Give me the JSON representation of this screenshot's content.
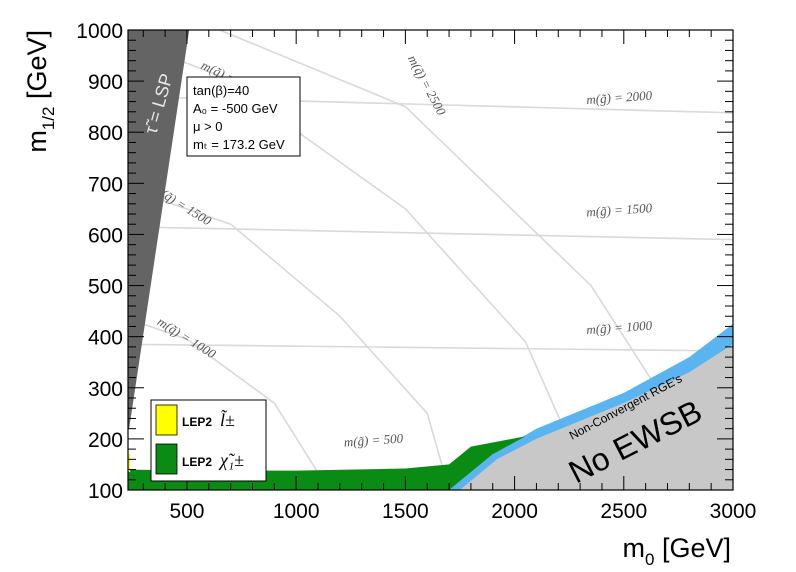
{
  "chart_data": {
    "type": "area",
    "xlabel_main": "m",
    "xlabel_sub": "0",
    "xlabel_unit": " [GeV]",
    "ylabel_main": "m",
    "ylabel_sub": "1/2",
    "ylabel_unit": " [GeV]",
    "xlim": [
      230,
      3000
    ],
    "ylim": [
      100,
      1000
    ],
    "xticks": [
      500,
      1000,
      1500,
      2000,
      2500,
      3000
    ],
    "xtick_labels": [
      "500",
      "1000",
      "1500",
      "2000",
      "2500",
      "3000"
    ],
    "yticks": [
      100,
      200,
      300,
      400,
      500,
      600,
      700,
      800,
      900,
      1000
    ],
    "ytick_labels": [
      "100",
      "200",
      "300",
      "400",
      "500",
      "600",
      "700",
      "800",
      "900",
      "1000"
    ],
    "parameters": [
      "tan(β)=40",
      "A₀ = -500 GeV",
      "μ > 0",
      "mₜ = 173.2 GeV"
    ],
    "regions": [
      {
        "name": "τ̃ = LSP",
        "color": "#646464",
        "polygon": [
          [
            230,
            1000
          ],
          [
            510,
            1000
          ],
          [
            235,
            220
          ],
          [
            230,
            220
          ]
        ]
      },
      {
        "name": "No EWSB",
        "color": "#c8c8c8",
        "polygon": [
          [
            1750,
            100
          ],
          [
            1920,
            160
          ],
          [
            2100,
            200
          ],
          [
            2500,
            270
          ],
          [
            2800,
            330
          ],
          [
            3000,
            385
          ],
          [
            3000,
            100
          ]
        ]
      },
      {
        "name": "Non-Convergent RGE's",
        "color": "#5ab4f0",
        "polygon": [
          [
            1700,
            100
          ],
          [
            1900,
            170
          ],
          [
            2100,
            220
          ],
          [
            2500,
            290
          ],
          [
            2800,
            360
          ],
          [
            3000,
            425
          ],
          [
            3000,
            385
          ],
          [
            2800,
            330
          ],
          [
            2500,
            270
          ],
          [
            2100,
            200
          ],
          [
            1920,
            160
          ],
          [
            1750,
            100
          ]
        ]
      },
      {
        "name": "LEP2 chargino",
        "color": "#0a8c14",
        "polygon": [
          [
            230,
            100
          ],
          [
            1700,
            100
          ],
          [
            1900,
            170
          ],
          [
            2050,
            205
          ],
          [
            1800,
            185
          ],
          [
            1700,
            150
          ],
          [
            1500,
            142
          ],
          [
            1000,
            138
          ],
          [
            500,
            138
          ],
          [
            250,
            140
          ],
          [
            230,
            140
          ]
        ]
      },
      {
        "name": "LEP2 slepton",
        "color": "#ffff00",
        "polygon": [
          [
            230,
            135
          ],
          [
            240,
            135
          ],
          [
            240,
            170
          ],
          [
            230,
            170
          ]
        ]
      }
    ],
    "squark_contours": [
      {
        "value": 1000,
        "points": [
          [
            230,
            435
          ],
          [
            500,
            395
          ],
          [
            900,
            270
          ],
          [
            1150,
            100
          ]
        ]
      },
      {
        "value": 1500,
        "points": [
          [
            230,
            690
          ],
          [
            700,
            620
          ],
          [
            1200,
            440
          ],
          [
            1600,
            250
          ],
          [
            1700,
            100
          ]
        ]
      },
      {
        "value": 2000,
        "points": [
          [
            230,
            980
          ],
          [
            650,
            910
          ],
          [
            1500,
            650
          ],
          [
            2050,
            390
          ],
          [
            2350,
            100
          ]
        ]
      },
      {
        "value": 2500,
        "points": [
          [
            650,
            1000
          ],
          [
            1500,
            850
          ],
          [
            2350,
            500
          ],
          [
            2950,
            100
          ]
        ]
      }
    ],
    "gluino_contours": [
      {
        "value": 500,
        "points": [
          [
            230,
            115
          ],
          [
            3000,
            110
          ]
        ]
      },
      {
        "value": 1000,
        "points": [
          [
            230,
            385
          ],
          [
            3000,
            372
          ]
        ]
      },
      {
        "value": 1500,
        "points": [
          [
            230,
            615
          ],
          [
            3000,
            590
          ]
        ]
      },
      {
        "value": 2000,
        "points": [
          [
            230,
            870
          ],
          [
            3000,
            838
          ]
        ]
      }
    ],
    "contour_labels": [
      {
        "text": "m(q̃) = 1000",
        "x": 360,
        "y": 425
      },
      {
        "text": "m(q̃) = 1500",
        "x": 340,
        "y": 685
      },
      {
        "text": "m(q̃) = 2000",
        "x": 560,
        "y": 925
      },
      {
        "text": "m(q̃) = 2500",
        "x": 1510,
        "y": 945
      },
      {
        "text": "m(g̃) = 500",
        "x": 1220,
        "y": 185
      },
      {
        "text": "m(g̃) = 1000",
        "x": 2330,
        "y": 405
      },
      {
        "text": "m(g̃) = 1500",
        "x": 2330,
        "y": 635
      },
      {
        "text": "m(g̃) = 2000",
        "x": 2330,
        "y": 855
      }
    ],
    "region_labels": {
      "stau": "τ̃ = LSP",
      "nonconv": "Non-Convergent RGE's",
      "noewsb": "No EWSB"
    },
    "legend": [
      {
        "label": "LEP2",
        "symbol": "l̃±",
        "color": "#ffff00"
      },
      {
        "label": "LEP2",
        "symbol": "χ̃₁±",
        "color": "#0a8c14"
      }
    ]
  }
}
